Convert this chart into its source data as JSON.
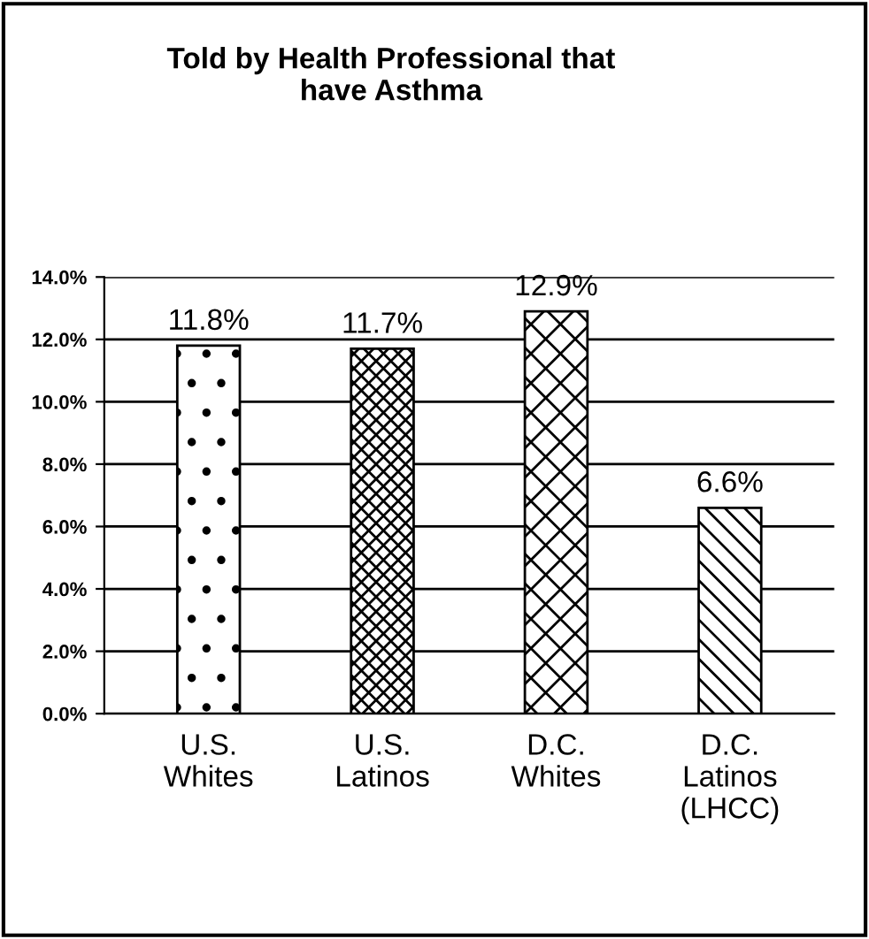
{
  "chart_data": {
    "type": "bar",
    "title": "Told by Health Professional that\nhave Asthma",
    "categories": [
      "U.S.\nWhites",
      "U.S.\nLatinos",
      "D.C.\nWhites",
      "D.C.\nLatinos\n(LHCC)"
    ],
    "values": [
      11.8,
      11.7,
      12.9,
      6.6
    ],
    "value_labels": [
      "11.8%",
      "11.7%",
      "12.9%",
      "6.6%"
    ],
    "colors": [
      "#000000",
      "#000000",
      "#000000",
      "#000000"
    ],
    "ylim": [
      0,
      14
    ],
    "yticks": [
      {
        "value": 0,
        "label": "0.0%"
      },
      {
        "value": 2,
        "label": "2.0%"
      },
      {
        "value": 4,
        "label": "4.0%"
      },
      {
        "value": 6,
        "label": "6.0%"
      },
      {
        "value": 8,
        "label": "8.0%"
      },
      {
        "value": 10,
        "label": "10.0%"
      },
      {
        "value": 12,
        "label": "12.0%"
      },
      {
        "value": 14,
        "label": "14.0%"
      }
    ],
    "grid": "y",
    "legend": false
  }
}
